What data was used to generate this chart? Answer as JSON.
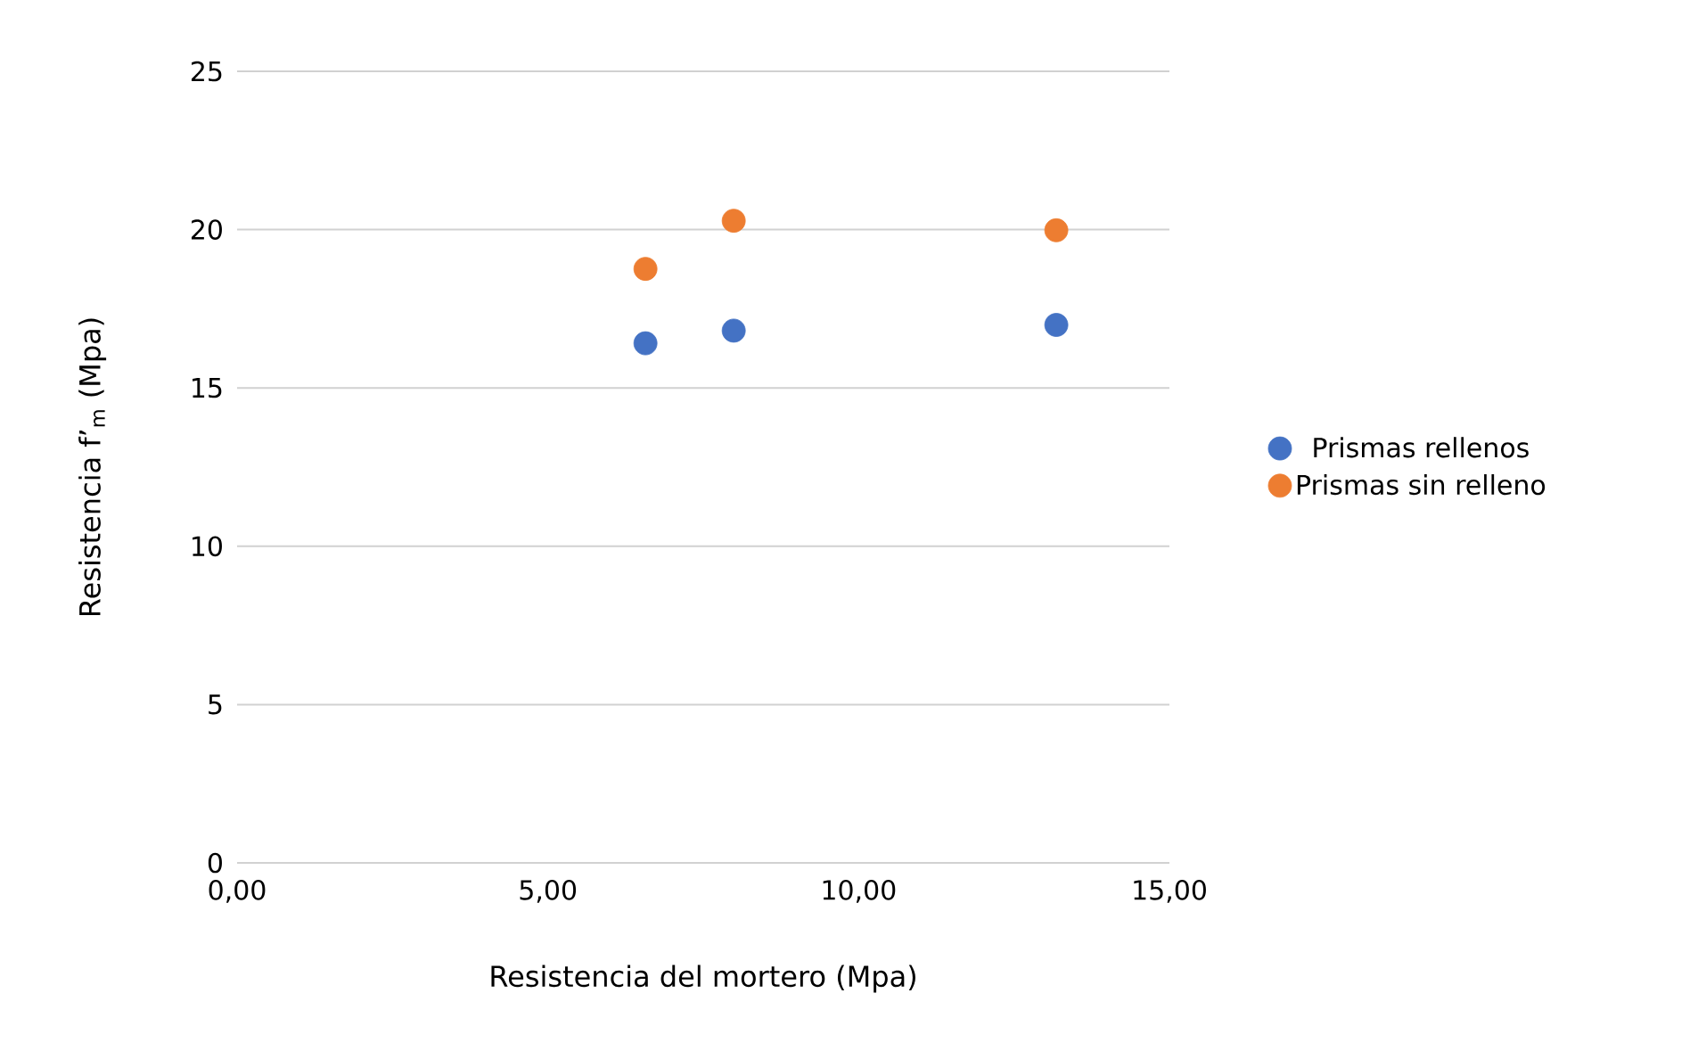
{
  "chart_data": {
    "type": "scatter",
    "xlabel": "Resistencia del mortero (Mpa)",
    "ylabel": "Resistencia f’$_{m}$ (Mpa)",
    "series": [
      {
        "name": "Prismas rellenos",
        "color": "#4472c4",
        "x": [
          6.57,
          7.99,
          13.18
        ],
        "values": [
          16.41,
          16.81,
          16.99
        ]
      },
      {
        "name": "Prismas sin relleno",
        "color": "#ed7d31",
        "x": [
          6.57,
          7.99,
          13.18
        ],
        "values": [
          18.76,
          20.28,
          19.98
        ]
      }
    ],
    "xlim": [
      0,
      15
    ],
    "xticks": [
      {
        "value": 0,
        "label": "0,00"
      },
      {
        "value": 5,
        "label": "5,00"
      },
      {
        "value": 10,
        "label": "10,00"
      },
      {
        "value": 15,
        "label": "15,00"
      }
    ],
    "ylim": [
      0,
      25
    ],
    "yticks": [
      0,
      5,
      10,
      15,
      20,
      25
    ],
    "grid": "y",
    "legend": "right",
    "marker": "circle"
  }
}
